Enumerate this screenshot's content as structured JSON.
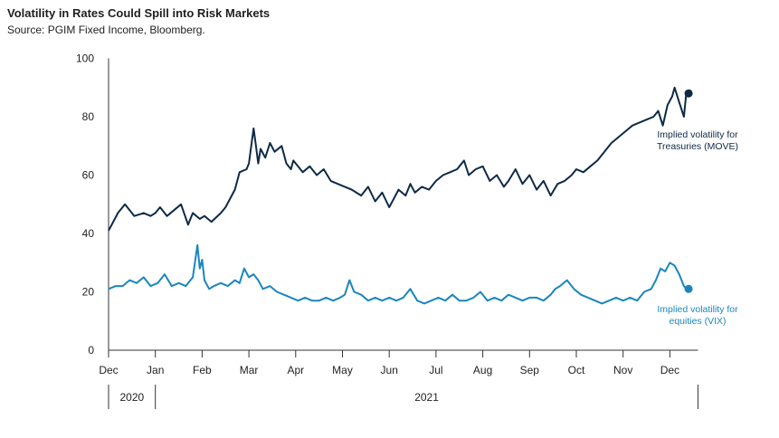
{
  "title": "Volatility in Rates Could Spill into Risk Markets",
  "subtitle": "Source: PGIM Fixed Income, Bloomberg.",
  "colors": {
    "move": "#0e2a47",
    "vix": "#1b86bd",
    "axis": "#333333"
  },
  "chart_data": {
    "type": "line",
    "title": "Volatility in Rates Could Spill into Risk Markets",
    "xlabel": "",
    "ylabel": "",
    "ylim": [
      0,
      100
    ],
    "yticks": [
      0,
      20,
      40,
      60,
      80,
      100
    ],
    "x_unit": "months since start of Dec 2020",
    "xlim": [
      0,
      12.6
    ],
    "month_ticks": [
      "Dec",
      "Jan",
      "Feb",
      "Mar",
      "Apr",
      "May",
      "Jun",
      "Jul",
      "Aug",
      "Sep",
      "Oct",
      "Nov",
      "Dec"
    ],
    "year_labels": [
      {
        "label": "2020",
        "from": 0,
        "to": 1
      },
      {
        "label": "2021",
        "from": 1,
        "to": 12.6
      }
    ],
    "grid": false,
    "series": [
      {
        "name": "Implied volatility for Treasuries (MOVE)",
        "annotation": [
          "Implied volatility for",
          "Treasuries (MOVE)"
        ],
        "x": [
          0.0,
          0.1,
          0.2,
          0.35,
          0.45,
          0.55,
          0.75,
          0.9,
          1.0,
          1.1,
          1.25,
          1.4,
          1.55,
          1.7,
          1.8,
          1.95,
          2.05,
          2.2,
          2.4,
          2.5,
          2.7,
          2.8,
          2.95,
          3.0,
          3.1,
          3.15,
          3.2,
          3.25,
          3.35,
          3.45,
          3.55,
          3.7,
          3.8,
          3.9,
          3.95,
          4.05,
          4.15,
          4.3,
          4.45,
          4.6,
          4.75,
          4.9,
          5.05,
          5.2,
          5.4,
          5.55,
          5.7,
          5.85,
          6.0,
          6.1,
          6.2,
          6.35,
          6.45,
          6.55,
          6.7,
          6.85,
          7.0,
          7.15,
          7.3,
          7.45,
          7.6,
          7.7,
          7.85,
          8.0,
          8.15,
          8.3,
          8.45,
          8.55,
          8.7,
          8.85,
          9.0,
          9.15,
          9.3,
          9.45,
          9.6,
          9.75,
          9.9,
          10.0,
          10.15,
          10.3,
          10.45,
          10.6,
          10.75,
          10.9,
          11.05,
          11.2,
          11.35,
          11.5,
          11.65,
          11.75,
          11.85,
          11.95,
          12.05,
          12.1,
          12.2,
          12.3,
          12.35
        ],
        "values": [
          41,
          44,
          47,
          50,
          48,
          46,
          47,
          46,
          47,
          49,
          46,
          48,
          50,
          43,
          47,
          45,
          46,
          44,
          47,
          49,
          55,
          61,
          62,
          64,
          76,
          70,
          64,
          69,
          66,
          71,
          68,
          70,
          64,
          62,
          65,
          63,
          61,
          63,
          60,
          62,
          58,
          57,
          56,
          55,
          53,
          56,
          51,
          54,
          49,
          52,
          55,
          53,
          57,
          54,
          56,
          55,
          58,
          60,
          61,
          62,
          65,
          60,
          62,
          63,
          58,
          60,
          56,
          58,
          62,
          57,
          60,
          55,
          58,
          53,
          57,
          58,
          60,
          62,
          61,
          63,
          65,
          68,
          71,
          73,
          75,
          77,
          78,
          79,
          80,
          82,
          77,
          84,
          87,
          90,
          85,
          80,
          88
        ]
      },
      {
        "name": "Implied volatility for equities (VIX)",
        "annotation": [
          "Implied volatility for",
          "equities (VIX)"
        ],
        "x": [
          0.0,
          0.15,
          0.3,
          0.45,
          0.6,
          0.75,
          0.9,
          1.05,
          1.2,
          1.35,
          1.5,
          1.65,
          1.8,
          1.9,
          1.95,
          2.0,
          2.05,
          2.15,
          2.25,
          2.4,
          2.55,
          2.7,
          2.8,
          2.9,
          3.0,
          3.1,
          3.2,
          3.3,
          3.45,
          3.6,
          3.75,
          3.9,
          4.05,
          4.2,
          4.35,
          4.5,
          4.65,
          4.8,
          4.95,
          5.05,
          5.15,
          5.25,
          5.4,
          5.55,
          5.7,
          5.85,
          6.0,
          6.15,
          6.3,
          6.45,
          6.6,
          6.75,
          6.9,
          7.05,
          7.2,
          7.35,
          7.5,
          7.65,
          7.8,
          7.95,
          8.1,
          8.25,
          8.4,
          8.55,
          8.7,
          8.85,
          9.0,
          9.15,
          9.3,
          9.45,
          9.55,
          9.65,
          9.8,
          9.95,
          10.1,
          10.25,
          10.4,
          10.55,
          10.7,
          10.85,
          11.0,
          11.15,
          11.3,
          11.45,
          11.6,
          11.7,
          11.8,
          11.9,
          12.0,
          12.1,
          12.2,
          12.3,
          12.35
        ],
        "values": [
          21,
          22,
          22,
          24,
          23,
          25,
          22,
          23,
          26,
          22,
          23,
          22,
          25,
          36,
          28,
          31,
          24,
          21,
          22,
          23,
          22,
          24,
          23,
          28,
          25,
          26,
          24,
          21,
          22,
          20,
          19,
          18,
          17,
          18,
          17,
          17,
          18,
          17,
          18,
          19,
          24,
          20,
          19,
          17,
          18,
          17,
          18,
          17,
          18,
          21,
          17,
          16,
          17,
          18,
          17,
          19,
          17,
          17,
          18,
          20,
          17,
          18,
          17,
          19,
          18,
          17,
          18,
          18,
          17,
          19,
          21,
          22,
          24,
          21,
          19,
          18,
          17,
          16,
          17,
          18,
          17,
          18,
          17,
          20,
          21,
          24,
          28,
          27,
          30,
          29,
          26,
          22,
          21
        ]
      }
    ]
  }
}
